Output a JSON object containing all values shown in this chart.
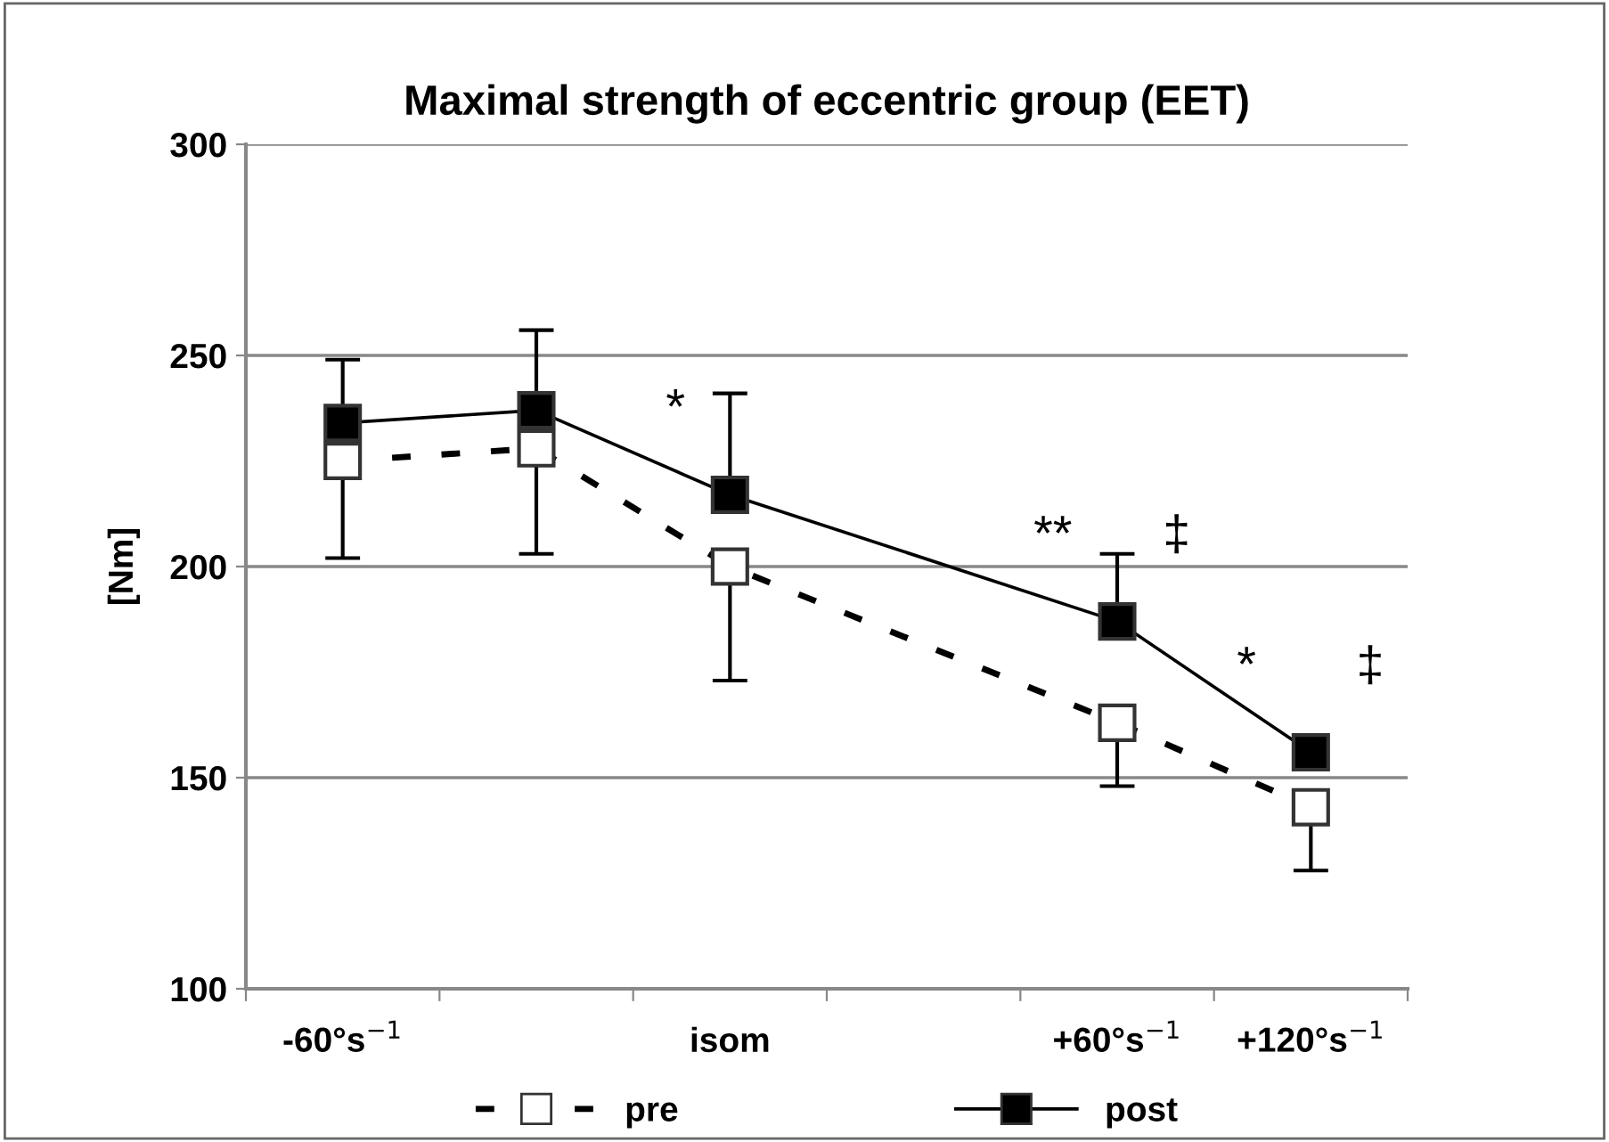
{
  "chart_data": {
    "type": "line",
    "title": "Maximal strength of eccentric group (EET)",
    "ylabel": "[Nm]",
    "categories": [
      "-60°s$^{−1}$",
      null,
      "isom",
      null,
      "+60°s$^{−1}$",
      "+120°s$^{−1}$"
    ],
    "series": [
      {
        "name": "pre",
        "color": "#000000",
        "line_style": "dashed",
        "marker": "square",
        "values": [
          225,
          228,
          200,
          null,
          163,
          143
        ],
        "errors": [
          [
            202,
            225
          ],
          [
            203,
            228
          ],
          [
            173,
            200
          ],
          null,
          [
            148,
            163
          ],
          [
            128,
            143
          ]
        ]
      },
      {
        "name": "post",
        "color": "#000000",
        "line_style": "solid",
        "marker": "square",
        "values": [
          234,
          237,
          217,
          null,
          187,
          156
        ],
        "errors": [
          [
            234,
            249
          ],
          [
            237,
            256
          ],
          [
            217,
            241
          ],
          null,
          [
            187,
            203
          ],
          [
            156,
            160
          ]
        ]
      }
    ],
    "ylim": [
      100,
      300
    ],
    "yticks": [
      100,
      150,
      200,
      250,
      300
    ],
    "grid": "y",
    "legend": "bottom",
    "annotations": [
      {
        "text": "*",
        "x": "isom",
        "y": 217
      },
      {
        "text": "**",
        "x": "+60°s$^{−1}$",
        "y": 187
      },
      {
        "text": "‡",
        "x": "+60°s$^{−1}$",
        "y": 187
      },
      {
        "text": "*",
        "x": "+120°s$^{−1}$",
        "y": 156
      },
      {
        "text": "‡",
        "x": "+120°s$^{−1}$",
        "y": 156
      }
    ]
  }
}
